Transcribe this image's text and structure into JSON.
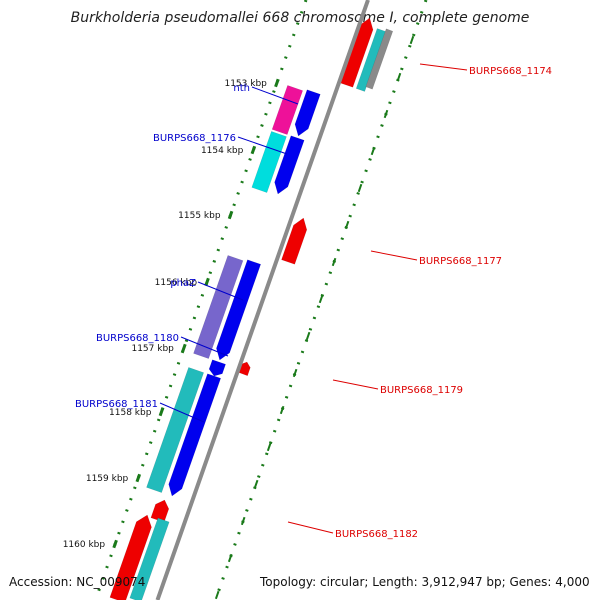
{
  "title": "Burkholderia pseudomallei 668 chromosome I, complete genome",
  "accession": "Accession: NC_009074",
  "topology": "Topology: circular; Length: 3,912,947 bp; Genes: 4,000",
  "colors": {
    "backbone": "#8a8a8a",
    "tick": "#1a7a1a",
    "forward_label": "#0000cc",
    "reverse_label": "#dd0000",
    "blue_gene": "#0000ee",
    "cyan_gene": "#00dddd",
    "teal_gene": "#22bbbb",
    "violet_gene": "#7766cc",
    "magenta_gene": "#ee1199",
    "red_gene": "#ee0000"
  },
  "ticks": [
    {
      "label": "1153 kbp"
    },
    {
      "label": "1154 kbp"
    },
    {
      "label": "1155 kbp"
    },
    {
      "label": "1156 kbp"
    },
    {
      "label": "1157 kbp"
    },
    {
      "label": "1158 kbp"
    },
    {
      "label": "1159 kbp"
    },
    {
      "label": "1160 kbp"
    }
  ],
  "gene_labels": [
    {
      "name": "nth",
      "strand": "forward"
    },
    {
      "name": "BURPS668_1176",
      "strand": "forward"
    },
    {
      "name": "phaZ",
      "strand": "forward"
    },
    {
      "name": "BURPS668_1180",
      "strand": "forward"
    },
    {
      "name": "BURPS668_1181",
      "strand": "forward"
    },
    {
      "name": "BURPS668_1174",
      "strand": "reverse"
    },
    {
      "name": "BURPS668_1177",
      "strand": "reverse"
    },
    {
      "name": "BURPS668_1179",
      "strand": "reverse"
    },
    {
      "name": "BURPS668_1182",
      "strand": "reverse"
    }
  ]
}
